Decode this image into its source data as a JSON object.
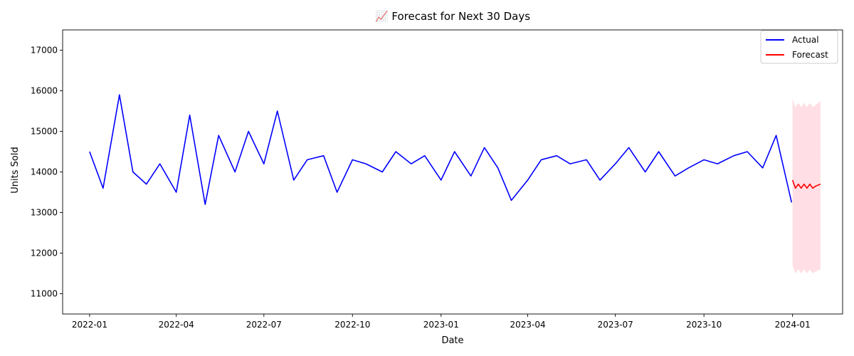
{
  "chart_data": {
    "type": "line",
    "title": "📈 Forecast for Next 30 Days",
    "xlabel": "Date",
    "ylabel": "Units Sold",
    "xlim": [
      "2021-12-04",
      "2024-02-22"
    ],
    "ylim": [
      10500,
      17500
    ],
    "x_ticks": [
      "2022-01",
      "2022-04",
      "2022-07",
      "2022-10",
      "2023-01",
      "2023-04",
      "2023-07",
      "2023-10",
      "2024-01"
    ],
    "y_ticks": [
      11000,
      12000,
      13000,
      14000,
      15000,
      16000,
      17000
    ],
    "legend_position": "top-right",
    "grid": false,
    "series": [
      {
        "name": "Actual",
        "color": "#0000ff",
        "x": [
          "2022-01-01",
          "2022-01-15",
          "2022-02-01",
          "2022-02-15",
          "2022-03-01",
          "2022-03-15",
          "2022-04-01",
          "2022-04-15",
          "2022-05-01",
          "2022-05-15",
          "2022-06-01",
          "2022-06-15",
          "2022-07-01",
          "2022-07-15",
          "2022-08-01",
          "2022-08-15",
          "2022-09-01",
          "2022-09-15",
          "2022-10-01",
          "2022-10-15",
          "2022-11-01",
          "2022-11-15",
          "2022-12-01",
          "2022-12-15",
          "2023-01-01",
          "2023-01-15",
          "2023-02-01",
          "2023-02-15",
          "2023-03-01",
          "2023-03-15",
          "2023-04-01",
          "2023-04-15",
          "2023-05-01",
          "2023-05-15",
          "2023-06-01",
          "2023-06-15",
          "2023-07-01",
          "2023-07-15",
          "2023-08-01",
          "2023-08-15",
          "2023-09-01",
          "2023-09-15",
          "2023-10-01",
          "2023-10-15",
          "2023-11-01",
          "2023-11-15",
          "2023-12-01",
          "2023-12-15",
          "2023-12-31"
        ],
        "y": [
          14500,
          13600,
          15900,
          14000,
          13700,
          14200,
          13500,
          15400,
          13200,
          14900,
          14000,
          15000,
          14200,
          15500,
          13800,
          14300,
          14400,
          13500,
          14300,
          14200,
          14000,
          14500,
          14200,
          14400,
          13800,
          14500,
          13900,
          14600,
          14100,
          13300,
          13800,
          14300,
          14400,
          14200,
          14300,
          13800,
          14200,
          14600,
          14000,
          14500,
          13900,
          14100,
          14300,
          14200,
          14400,
          14500,
          14100,
          14900,
          13250
        ]
      },
      {
        "name": "Forecast",
        "color": "#ff0000",
        "x": [
          "2024-01-01",
          "2024-01-04",
          "2024-01-07",
          "2024-01-10",
          "2024-01-13",
          "2024-01-16",
          "2024-01-19",
          "2024-01-22",
          "2024-01-25",
          "2024-01-30"
        ],
        "y": [
          13800,
          13600,
          13700,
          13600,
          13700,
          13600,
          13700,
          13600,
          13650,
          13700
        ],
        "band_low": [
          11700,
          11500,
          11600,
          11500,
          11600,
          11500,
          11600,
          11500,
          11550,
          11600
        ],
        "band_high": [
          15800,
          15600,
          15700,
          15600,
          15700,
          15600,
          15700,
          15600,
          15650,
          15750
        ],
        "band_color": "#ffc0cb"
      }
    ]
  }
}
